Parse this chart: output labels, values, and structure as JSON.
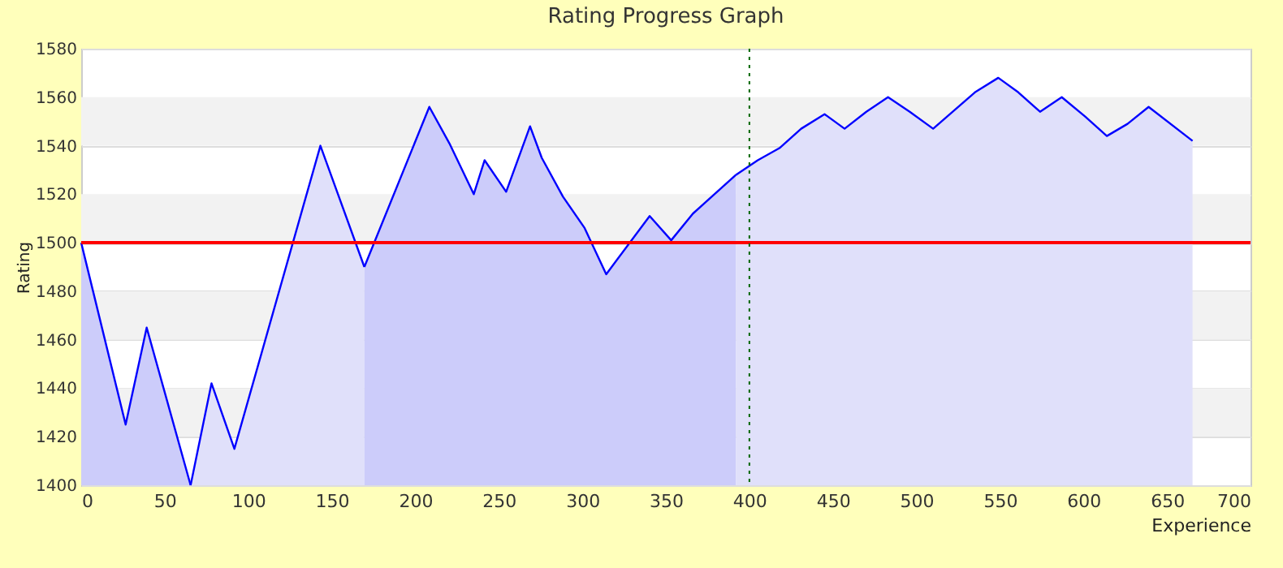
{
  "chart_data": {
    "type": "area",
    "title": "Rating Progress Graph",
    "xlabel": "Experience",
    "ylabel": "Rating",
    "series": [
      {
        "color": "#ccccfa",
        "x": [
          0,
          26.6,
          39.2,
          65.5
        ],
        "values": [
          1500,
          1425,
          1465,
          1400
        ]
      },
      {
        "color": "#e0e0fa",
        "x": [
          65.5,
          78,
          91.7,
          143.2,
          169.5
        ],
        "values": [
          1400,
          1442,
          1415,
          1540,
          1490
        ]
      },
      {
        "color": "#ccccfa",
        "x": [
          169.5,
          208.4,
          220.4,
          235,
          241.5,
          254.4,
          268.7,
          275.7,
          288.4,
          301.4,
          314.3,
          340.3,
          353.2,
          366.2,
          392
        ],
        "values": [
          1490,
          1556,
          1541,
          1520,
          1534,
          1521,
          1548,
          1535,
          1519,
          1506,
          1487,
          1511,
          1501,
          1512,
          1528
        ]
      },
      {
        "color": "#e0e0fa",
        "x": [
          392,
          405,
          418,
          431,
          445,
          457,
          470,
          483,
          496,
          510,
          535,
          549,
          561,
          574,
          587,
          601,
          614,
          626.4,
          639,
          665.3
        ],
        "values": [
          1528,
          1534,
          1539,
          1547,
          1553,
          1547,
          1554,
          1560,
          1554,
          1547,
          1562,
          1568,
          1562,
          1554,
          1560,
          1552,
          1544,
          1549,
          1556,
          1542
        ]
      }
    ],
    "ref_lines": [
      {
        "axis": "y",
        "value": 1500,
        "color": "#ff0000",
        "line_style": "solid"
      },
      {
        "axis": "x",
        "value": 400,
        "color": "#006600",
        "line_style": "dotted"
      }
    ],
    "xlim": [
      0,
      700
    ],
    "xticks": [
      0,
      50,
      100,
      150,
      200,
      250,
      300,
      350,
      400,
      450,
      500,
      550,
      600,
      650,
      700
    ],
    "ylim": [
      1400,
      1580
    ],
    "yticks": [
      1400,
      1420,
      1440,
      1460,
      1480,
      1500,
      1520,
      1540,
      1560,
      1580
    ],
    "grid": "y",
    "marker": "none",
    "line_style": "solid"
  }
}
